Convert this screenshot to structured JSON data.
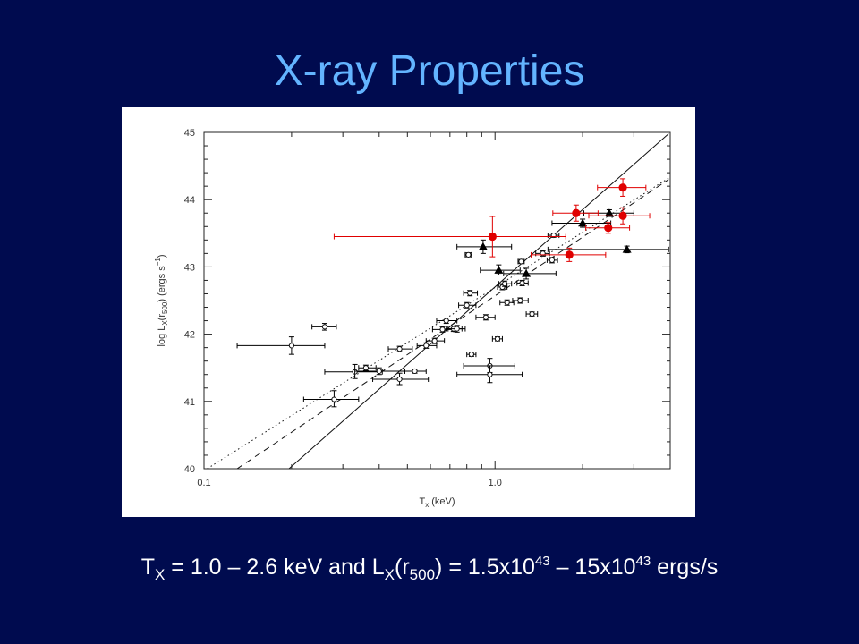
{
  "slide": {
    "title": "X-ray Properties"
  },
  "caption": {
    "t_symbol": "T",
    "t_sub": "X",
    "t_range": " = 1.0 – 2.6 keV and L",
    "l_sub": "X",
    "l_open": "(r",
    "r_sub": "500",
    "l_eq": ") = 1.5x10",
    "exp1": "43",
    "dash": " – 15x10",
    "exp2": "43",
    "unit": " ergs/s"
  },
  "colors": {
    "background": "#000b4f",
    "title": "#63b4ff",
    "caption": "#ffffff",
    "red_points": "#e00000",
    "black_points": "#000000"
  },
  "chart_data": {
    "type": "scatter",
    "x_scale": "log",
    "xlim": [
      0.1,
      4.0
    ],
    "ylim": [
      40,
      45
    ],
    "x_ticks": [
      {
        "value": 0.1,
        "label": "0.1"
      },
      {
        "value": 1.0,
        "label": "1.0"
      }
    ],
    "y_ticks": [
      {
        "value": 40,
        "label": "40"
      },
      {
        "value": 41,
        "label": "41"
      },
      {
        "value": 42,
        "label": "42"
      },
      {
        "value": 43,
        "label": "43"
      },
      {
        "value": 44,
        "label": "44"
      },
      {
        "value": 45,
        "label": "45"
      }
    ],
    "xlabel": "T<sub>x</sub> (keV)",
    "ylabel": "log L<sub>X</sub>(r<sub>500</sub>) (ergs s<sup>-1</sup>)",
    "xlabel_parts": {
      "main": "T",
      "sub": "x",
      "rest": " (keV)"
    },
    "ylabel_parts": {
      "a": "log L",
      "b": "X",
      "c": "(r",
      "d": "500",
      "e": ") (ergs s",
      "f": "−1",
      "g": ")"
    },
    "fit_lines": [
      {
        "style": "solid",
        "points": [
          [
            0.196,
            40.0
          ],
          [
            3.95,
            44.98
          ]
        ]
      },
      {
        "style": "dashed",
        "points": [
          [
            0.13,
            40.0
          ],
          [
            3.95,
            44.3
          ]
        ]
      },
      {
        "style": "dotted",
        "points": [
          [
            0.1,
            39.97
          ],
          [
            3.95,
            44.32
          ]
        ]
      }
    ],
    "series": [
      {
        "marker": "open-circle",
        "color": "#000000",
        "points": [
          {
            "x": 0.2,
            "y": 41.83,
            "xerr": [
              0.13,
              0.26
            ],
            "yerr": [
              41.7,
              41.96
            ]
          },
          {
            "x": 0.26,
            "y": 42.11,
            "xerr": [
              0.235,
              0.285
            ],
            "yerr": [
              42.06,
              42.16
            ]
          },
          {
            "x": 0.28,
            "y": 41.03,
            "xerr": [
              0.22,
              0.34
            ],
            "yerr": [
              40.92,
              41.16
            ]
          },
          {
            "x": 0.33,
            "y": 41.44,
            "xerr": [
              0.26,
              0.41
            ],
            "yerr": [
              41.34,
              41.55
            ]
          },
          {
            "x": 0.36,
            "y": 41.5,
            "xerr": [
              0.34,
              0.39
            ],
            "yerr": [
              41.46,
              41.54
            ]
          },
          {
            "x": 0.4,
            "y": 41.45,
            "xerr": [
              0.33,
              0.49
            ],
            "yerr": [
              41.4,
              41.5
            ]
          },
          {
            "x": 0.47,
            "y": 41.33,
            "xerr": [
              0.38,
              0.59
            ],
            "yerr": [
              41.25,
              41.42
            ]
          },
          {
            "x": 0.47,
            "y": 41.78,
            "xerr": [
              0.43,
              0.52
            ],
            "yerr": [
              41.74,
              41.82
            ]
          },
          {
            "x": 0.53,
            "y": 41.45,
            "xerr": [
              0.49,
              0.58
            ],
            "yerr": [
              41.42,
              41.48
            ]
          },
          {
            "x": 0.58,
            "y": 41.83,
            "xerr": [
              0.54,
              0.63
            ],
            "yerr": [
              41.79,
              41.87
            ]
          },
          {
            "x": 0.62,
            "y": 41.9,
            "xerr": [
              0.58,
              0.67
            ],
            "yerr": [
              41.86,
              41.94
            ]
          },
          {
            "x": 0.66,
            "y": 42.07,
            "xerr": [
              0.61,
              0.72
            ],
            "yerr": [
              42.03,
              42.11
            ]
          },
          {
            "x": 0.68,
            "y": 42.2,
            "xerr": [
              0.63,
              0.74
            ],
            "yerr": [
              42.16,
              42.24
            ]
          },
          {
            "x": 0.72,
            "y": 42.08,
            "xerr": [
              0.68,
              0.77
            ],
            "yerr": [
              42.04,
              42.12
            ]
          },
          {
            "x": 0.74,
            "y": 42.08,
            "xerr": [
              0.69,
              0.79
            ],
            "yerr": [
              42.03,
              42.13
            ]
          },
          {
            "x": 0.8,
            "y": 42.43,
            "xerr": [
              0.75,
              0.86
            ],
            "yerr": [
              42.39,
              42.47
            ]
          },
          {
            "x": 0.82,
            "y": 42.61,
            "xerr": [
              0.78,
              0.87
            ],
            "yerr": [
              42.57,
              42.65
            ]
          },
          {
            "x": 0.81,
            "y": 43.18,
            "xerr": [
              0.79,
              0.83
            ],
            "yerr": [
              43.15,
              43.21
            ]
          },
          {
            "x": 0.83,
            "y": 41.7,
            "xerr": [
              0.8,
              0.86
            ],
            "yerr": [
              41.67,
              41.73
            ]
          },
          {
            "x": 0.93,
            "y": 42.25,
            "xerr": [
              0.86,
              1.0
            ],
            "yerr": [
              42.21,
              42.29
            ]
          },
          {
            "x": 0.96,
            "y": 41.53,
            "xerr": [
              0.78,
              1.17
            ],
            "yerr": [
              41.43,
              41.64
            ]
          },
          {
            "x": 0.96,
            "y": 41.4,
            "xerr": [
              0.74,
              1.24
            ],
            "yerr": [
              41.28,
              41.53
            ]
          },
          {
            "x": 1.02,
            "y": 41.93,
            "xerr": [
              0.98,
              1.06
            ],
            "yerr": [
              41.9,
              41.96
            ]
          },
          {
            "x": 1.06,
            "y": 42.7,
            "xerr": [
              1.02,
              1.1
            ],
            "yerr": [
              42.66,
              42.74
            ]
          },
          {
            "x": 1.08,
            "y": 42.75,
            "xerr": [
              1.03,
              1.14
            ],
            "yerr": [
              42.71,
              42.79
            ]
          },
          {
            "x": 1.1,
            "y": 42.47,
            "xerr": [
              1.04,
              1.16
            ],
            "yerr": [
              42.43,
              42.51
            ]
          },
          {
            "x": 1.22,
            "y": 42.5,
            "xerr": [
              1.15,
              1.3
            ],
            "yerr": [
              42.46,
              42.54
            ]
          },
          {
            "x": 1.23,
            "y": 43.08,
            "xerr": [
              1.2,
              1.26
            ],
            "yerr": [
              43.05,
              43.11
            ]
          },
          {
            "x": 1.24,
            "y": 42.76,
            "xerr": [
              1.19,
              1.3
            ],
            "yerr": [
              42.72,
              42.8
            ]
          },
          {
            "x": 1.34,
            "y": 42.3,
            "xerr": [
              1.28,
              1.4
            ],
            "yerr": [
              42.27,
              42.33
            ]
          },
          {
            "x": 1.46,
            "y": 43.2,
            "xerr": [
              1.38,
              1.54
            ],
            "yerr": [
              43.16,
              43.24
            ]
          },
          {
            "x": 1.57,
            "y": 43.1,
            "xerr": [
              1.51,
              1.64
            ],
            "yerr": [
              43.06,
              43.14
            ]
          },
          {
            "x": 1.59,
            "y": 43.47,
            "xerr": [
              1.52,
              1.66
            ],
            "yerr": [
              43.44,
              43.5
            ]
          }
        ]
      },
      {
        "marker": "filled-triangle",
        "color": "#000000",
        "points": [
          {
            "x": 0.91,
            "y": 43.3,
            "xerr": [
              0.74,
              1.14
            ],
            "yerr": [
              43.2,
              43.4
            ]
          },
          {
            "x": 1.03,
            "y": 42.95,
            "xerr": [
              0.89,
              1.22
            ],
            "yerr": [
              42.88,
              43.03
            ]
          },
          {
            "x": 1.28,
            "y": 42.9,
            "xerr": [
              1.07,
              1.62
            ],
            "yerr": [
              42.82,
              42.98
            ]
          },
          {
            "x": 2.0,
            "y": 43.65,
            "xerr": [
              1.57,
              2.5
            ],
            "yerr": [
              43.59,
              43.71
            ]
          },
          {
            "x": 2.47,
            "y": 43.8,
            "xerr": [
              2.02,
              3.0
            ],
            "yerr": [
              43.75,
              43.85
            ]
          },
          {
            "x": 2.84,
            "y": 43.26,
            "xerr": [
              1.52,
              3.95
            ],
            "yerr": [
              43.21,
              43.31
            ]
          }
        ]
      },
      {
        "marker": "filled-circle",
        "color": "#e00000",
        "points": [
          {
            "x": 0.98,
            "y": 43.45,
            "xerr": [
              0.28,
              1.75
            ],
            "yerr": [
              43.15,
              43.75
            ]
          },
          {
            "x": 1.9,
            "y": 43.8,
            "xerr": [
              1.58,
              2.26
            ],
            "yerr": [
              43.68,
              43.92
            ]
          },
          {
            "x": 1.8,
            "y": 43.18,
            "xerr": [
              1.33,
              2.4
            ],
            "yerr": [
              43.08,
              43.28
            ]
          },
          {
            "x": 2.45,
            "y": 43.58,
            "xerr": [
              2.05,
              2.9
            ],
            "yerr": [
              43.5,
              43.66
            ]
          },
          {
            "x": 2.75,
            "y": 44.18,
            "xerr": [
              2.25,
              3.3
            ],
            "yerr": [
              44.05,
              44.31
            ]
          },
          {
            "x": 2.75,
            "y": 43.76,
            "xerr": [
              2.1,
              3.4
            ],
            "yerr": [
              43.64,
              43.88
            ]
          }
        ]
      }
    ]
  }
}
